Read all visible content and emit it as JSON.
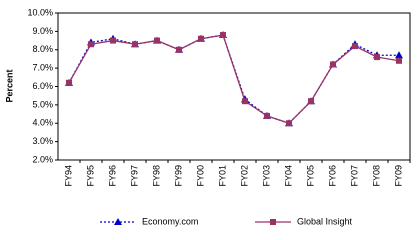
{
  "chart_data": {
    "type": "line",
    "y_label": "Percent",
    "categories": [
      "FY94",
      "FY95",
      "FY96",
      "FY97",
      "FY98",
      "FY99",
      "FY00",
      "FY01",
      "FY02",
      "FY03",
      "FY04",
      "FY05",
      "FY06",
      "FY07",
      "FY08",
      "FY09"
    ],
    "series": [
      {
        "name": "Economy.com",
        "color": "#0000cc",
        "line_style": "dotted",
        "marker": "triangle",
        "values": [
          6.2,
          8.4,
          8.6,
          8.3,
          8.5,
          8.0,
          8.6,
          8.8,
          5.3,
          4.4,
          4.0,
          5.2,
          7.2,
          8.3,
          7.7,
          7.7
        ]
      },
      {
        "name": "Global Insight",
        "color": "#993366",
        "line_style": "solid",
        "marker": "square",
        "values": [
          6.2,
          8.3,
          8.5,
          8.3,
          8.5,
          8.0,
          8.6,
          8.8,
          5.2,
          4.4,
          4.0,
          5.2,
          7.2,
          8.2,
          7.6,
          7.4
        ]
      }
    ],
    "ylim": [
      2,
      10
    ],
    "yticks": [
      {
        "value": 2,
        "label": "2.0%"
      },
      {
        "value": 3,
        "label": "3.0%"
      },
      {
        "value": 4,
        "label": "4.0%"
      },
      {
        "value": 5,
        "label": "5.0%"
      },
      {
        "value": 6,
        "label": "6.0%"
      },
      {
        "value": 7,
        "label": "7.0%"
      },
      {
        "value": 8,
        "label": "8.0%"
      },
      {
        "value": 9,
        "label": "9.0%"
      },
      {
        "value": 10,
        "label": "10.0%"
      }
    ],
    "grid": false,
    "legend": "bottom"
  }
}
